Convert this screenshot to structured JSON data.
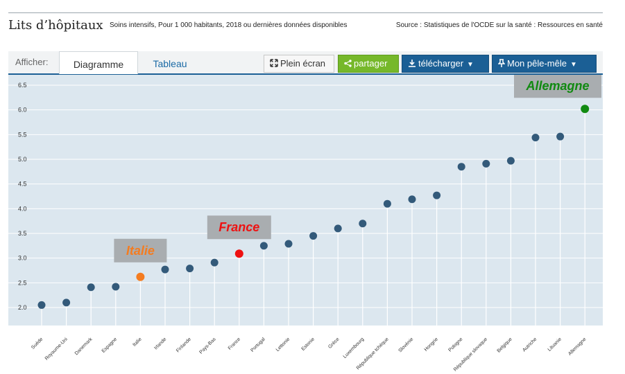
{
  "header": {
    "title": "Lits d’hôpitaux",
    "subtitle": "Soins intensifs, Pour 1 000 habitants, 2018 ou dernières données disponibles",
    "source": "Source : Statistiques de l'OCDE sur la santé : Ressources en santé"
  },
  "toolbar": {
    "afficher_label": "Afficher:",
    "tab_chart": "Diagramme",
    "tab_table": "Tableau",
    "fullscreen_label": "Plein écran",
    "share_label": "partager",
    "download_label": "télécharger",
    "mypage_label": "Mon pêle-mêle"
  },
  "colors": {
    "plot_background": "#dce7ef",
    "default_point": "#335a7a",
    "italy": "#f47c20",
    "france": "#ee1111",
    "germany": "#118a11",
    "callout_box": "#a9adb0"
  },
  "chart_data": {
    "type": "scatter",
    "title": "Lits d’hôpitaux",
    "ylim": [
      1.8,
      6.6
    ],
    "yticks": [
      "2.0",
      "2.5",
      "3.0",
      "3.5",
      "4.0",
      "4.5",
      "5.0",
      "5.5",
      "6.0",
      "6.5"
    ],
    "grid": true,
    "categories": [
      "Suède",
      "Royaume-Uni",
      "Danemark",
      "Espagne",
      "Italie",
      "Irlande",
      "Finlande",
      "Pays-Bas",
      "France",
      "Portugal",
      "Lettonie",
      "Estonie",
      "Grèce",
      "Luxembourg",
      "République tchèque",
      "Slovénie",
      "Hongrie",
      "Pologne",
      "République slovaque",
      "Belgique",
      "Autriche",
      "Lituanie",
      "Allemagne"
    ],
    "values": [
      2.05,
      2.1,
      2.41,
      2.42,
      2.62,
      2.77,
      2.79,
      2.91,
      3.09,
      3.25,
      3.29,
      3.45,
      3.6,
      3.7,
      4.1,
      4.19,
      4.27,
      4.85,
      4.91,
      4.97,
      5.44,
      5.46,
      6.02
    ],
    "highlights": [
      {
        "country": "Italie",
        "label": "Italie",
        "color": "#f47c20"
      },
      {
        "country": "France",
        "label": "France",
        "color": "#ee1111"
      },
      {
        "country": "Allemagne",
        "label": "Allemagne",
        "color": "#118a11"
      }
    ]
  }
}
